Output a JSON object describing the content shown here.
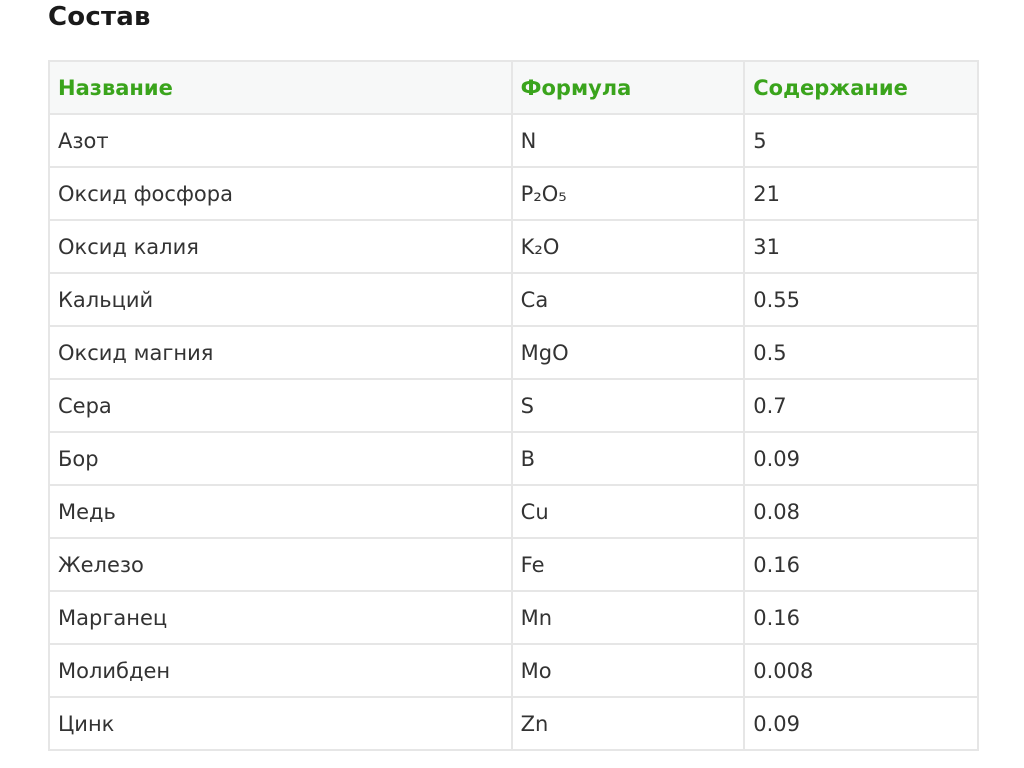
{
  "title": "Состав",
  "colors": {
    "header_text": "#3aa41c",
    "header_bg": "#f7f8f8",
    "border": "#e6e6e6"
  },
  "table": {
    "headers": [
      "Название",
      "Формула",
      "Содержание"
    ],
    "rows": [
      {
        "name": "Азот",
        "formula": "N",
        "value": "5"
      },
      {
        "name": "Оксид фосфора",
        "formula": "P₂O₅",
        "value": "21"
      },
      {
        "name": "Оксид калия",
        "formula": "K₂O",
        "value": "31"
      },
      {
        "name": "Кальций",
        "formula": "Ca",
        "value": "0.55"
      },
      {
        "name": "Оксид магния",
        "formula": "MgO",
        "value": "0.5"
      },
      {
        "name": "Сера",
        "formula": "S",
        "value": "0.7"
      },
      {
        "name": "Бор",
        "formula": "B",
        "value": "0.09"
      },
      {
        "name": "Медь",
        "formula": "Cu",
        "value": "0.08"
      },
      {
        "name": "Железо",
        "formula": "Fe",
        "value": "0.16"
      },
      {
        "name": "Марганец",
        "formula": "Mn",
        "value": "0.16"
      },
      {
        "name": "Молибден",
        "formula": "Mo",
        "value": "0.008"
      },
      {
        "name": "Цинк",
        "formula": "Zn",
        "value": "0.09"
      }
    ]
  }
}
